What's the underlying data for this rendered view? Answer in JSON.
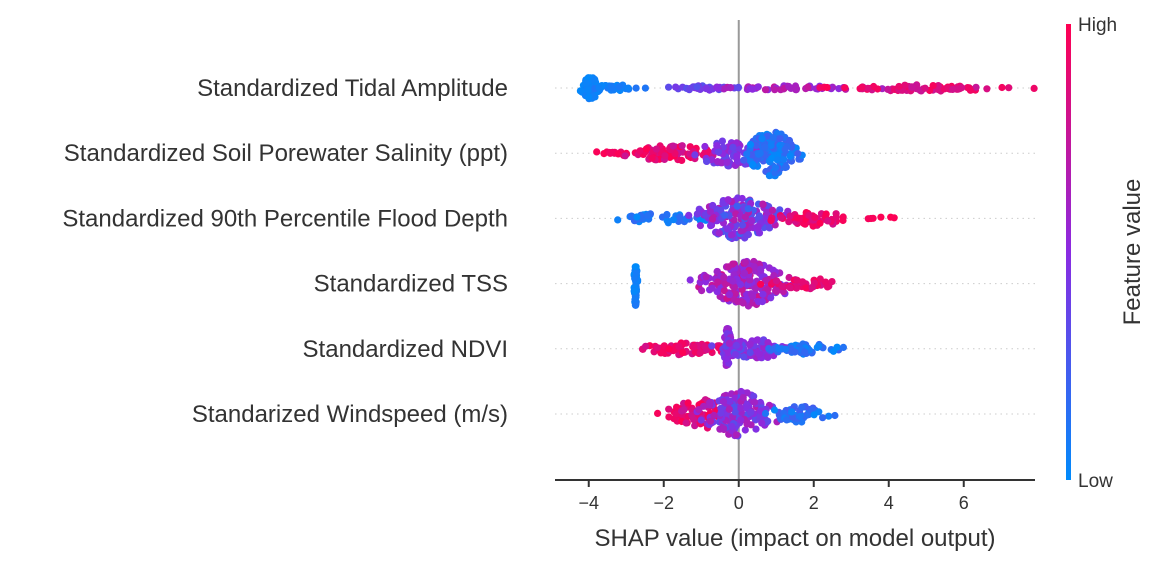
{
  "chart_data": {
    "type": "scatter",
    "xlabel": "SHAP value (impact on model output)",
    "xlim": [
      -4.9,
      7.9
    ],
    "xticks": [
      -4,
      -2,
      0,
      2,
      4,
      6
    ],
    "xtick_labels": [
      "−4",
      "−2",
      "0",
      "2",
      "4",
      "6"
    ],
    "colorbar": {
      "label": "Feature value",
      "high_label": "High",
      "low_label": "Low",
      "high_color": "#ff0052",
      "mid_color": "#8a2be2",
      "low_color": "#008bfb"
    },
    "features": [
      {
        "name": "Standardized Tidal Amplitude",
        "clusters": [
          {
            "center": -3.95,
            "count": 110,
            "spread": 0.12,
            "max_width": 0.42,
            "feature_value": [
              0.0,
              0.08
            ]
          },
          {
            "center": -3.3,
            "count": 30,
            "spread": 0.35,
            "max_width": 0.12,
            "feature_value": [
              0.02,
              0.12
            ]
          },
          {
            "center": -1.0,
            "count": 30,
            "spread": 0.6,
            "max_width": 0.08,
            "feature_value": [
              0.3,
              0.5
            ]
          },
          {
            "center": 1.5,
            "count": 50,
            "spread": 1.2,
            "max_width": 0.08,
            "feature_value": [
              0.5,
              0.75
            ]
          },
          {
            "center": 5.0,
            "count": 80,
            "spread": 1.1,
            "max_width": 0.12,
            "feature_value": [
              0.75,
              1.0
            ]
          }
        ]
      },
      {
        "name": "Standardized Soil Porewater Salinity (ppt)",
        "clusters": [
          {
            "center": -3.6,
            "count": 12,
            "spread": 0.4,
            "max_width": 0.06,
            "feature_value": [
              0.9,
              1.0
            ]
          },
          {
            "center": -1.8,
            "count": 70,
            "spread": 0.6,
            "max_width": 0.3,
            "feature_value": [
              0.75,
              1.0
            ]
          },
          {
            "center": -0.2,
            "count": 90,
            "spread": 0.5,
            "max_width": 0.5,
            "feature_value": [
              0.35,
              0.6
            ]
          },
          {
            "center": 0.9,
            "count": 160,
            "spread": 0.35,
            "max_width": 0.85,
            "feature_value": [
              0.0,
              0.25
            ]
          }
        ]
      },
      {
        "name": "Standardized 90th Percentile Flood Depth",
        "clusters": [
          {
            "center": -2.0,
            "count": 40,
            "spread": 0.5,
            "max_width": 0.2,
            "feature_value": [
              0.0,
              0.2
            ]
          },
          {
            "center": 0.0,
            "count": 180,
            "spread": 0.55,
            "max_width": 0.8,
            "feature_value": [
              0.2,
              0.7
            ]
          },
          {
            "center": 2.0,
            "count": 60,
            "spread": 0.45,
            "max_width": 0.3,
            "feature_value": [
              0.8,
              1.0
            ]
          },
          {
            "center": 4.0,
            "count": 6,
            "spread": 0.4,
            "max_width": 0.05,
            "feature_value": [
              0.95,
              1.0
            ]
          }
        ]
      },
      {
        "name": "Standardized TSS",
        "clusters": [
          {
            "center": -2.75,
            "count": 60,
            "spread": 0.02,
            "max_width": 0.85,
            "feature_value": [
              0.0,
              0.1
            ]
          },
          {
            "center": 0.2,
            "count": 200,
            "spread": 0.55,
            "max_width": 0.85,
            "feature_value": [
              0.45,
              0.8
            ]
          },
          {
            "center": 1.8,
            "count": 40,
            "spread": 0.5,
            "max_width": 0.2,
            "feature_value": [
              0.8,
              1.0
            ]
          }
        ]
      },
      {
        "name": "Standardized NDVI",
        "clusters": [
          {
            "center": -1.5,
            "count": 80,
            "spread": 0.6,
            "max_width": 0.22,
            "feature_value": [
              0.8,
              1.0
            ]
          },
          {
            "center": -0.3,
            "count": 40,
            "spread": 0.05,
            "max_width": 0.8,
            "feature_value": [
              0.4,
              0.6
            ]
          },
          {
            "center": 0.5,
            "count": 90,
            "spread": 0.5,
            "max_width": 0.35,
            "feature_value": [
              0.3,
              0.6
            ]
          },
          {
            "center": 1.8,
            "count": 50,
            "spread": 0.5,
            "max_width": 0.2,
            "feature_value": [
              0.0,
              0.2
            ]
          }
        ]
      },
      {
        "name": "Standarized Windspeed (m/s)",
        "clusters": [
          {
            "center": -1.0,
            "count": 80,
            "spread": 0.45,
            "max_width": 0.55,
            "feature_value": [
              0.75,
              1.0
            ]
          },
          {
            "center": 0.0,
            "count": 160,
            "spread": 0.45,
            "max_width": 0.85,
            "feature_value": [
              0.3,
              0.7
            ]
          },
          {
            "center": 1.6,
            "count": 50,
            "spread": 0.4,
            "max_width": 0.3,
            "feature_value": [
              0.0,
              0.25
            ]
          }
        ]
      }
    ]
  }
}
